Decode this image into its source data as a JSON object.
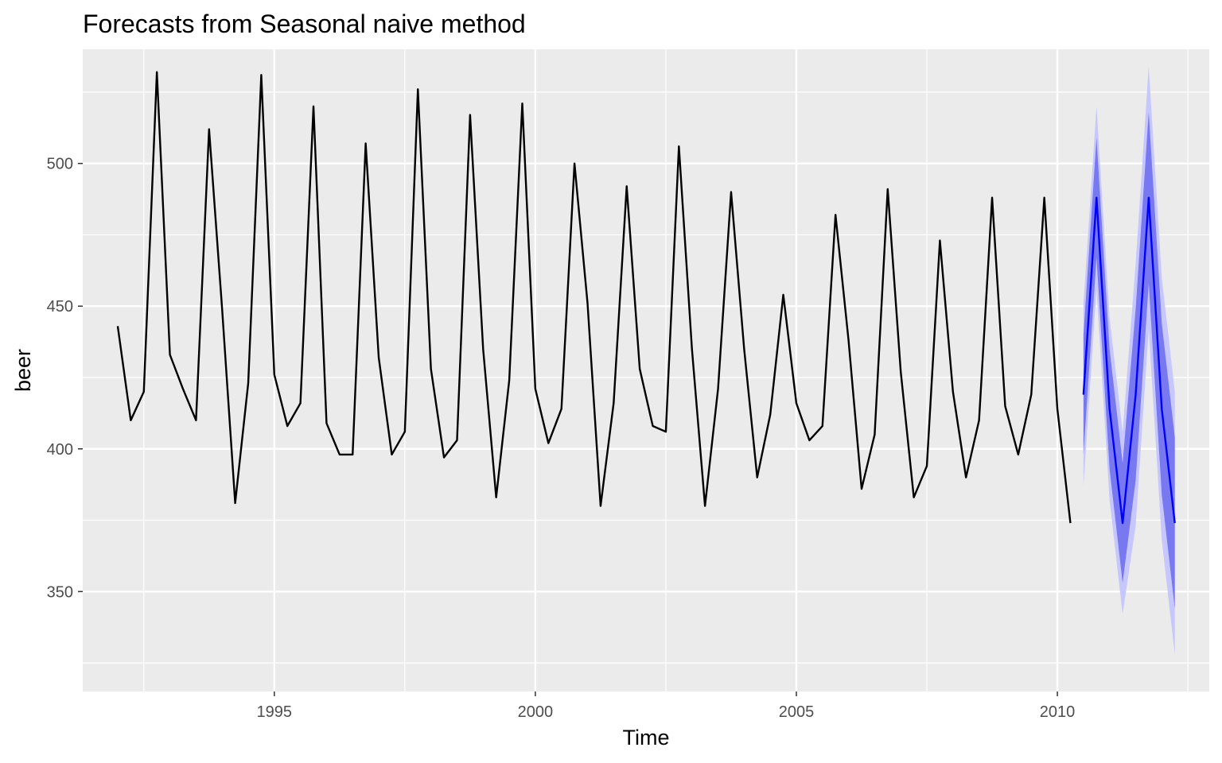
{
  "chart_data": {
    "type": "line",
    "title": "Forecasts from Seasonal naive method",
    "xlabel": "Time",
    "ylabel": "beer",
    "xlim": [
      1991.33,
      2012.91
    ],
    "ylim": [
      315,
      540
    ],
    "x_ticks": [
      1995,
      2000,
      2005,
      2010
    ],
    "x_tick_labels": [
      "1995",
      "2000",
      "2005",
      "2010"
    ],
    "y_ticks": [
      350,
      400,
      450,
      500
    ],
    "y_tick_labels": [
      "350",
      "400",
      "450",
      "500"
    ],
    "grid": true,
    "legend": "none",
    "colors": {
      "panel": "#EBEBEB",
      "grid_major": "#FFFFFF",
      "history_line": "#000000",
      "forecast_line": "#0000FF",
      "band_95": "#C7C7FF",
      "band_80": "#7878F0"
    },
    "history": {
      "start_year": 1992,
      "start_quarter": 1,
      "frequency": 4,
      "values": [
        443,
        410,
        420,
        532,
        433,
        421,
        410,
        512,
        449,
        381,
        423,
        531,
        426,
        408,
        416,
        520,
        409,
        398,
        398,
        507,
        432,
        398,
        406,
        526,
        428,
        397,
        403,
        517,
        435,
        383,
        424,
        521,
        421,
        402,
        414,
        500,
        451,
        380,
        416,
        492,
        428,
        408,
        406,
        506,
        435,
        380,
        421,
        490,
        435,
        390,
        412,
        454,
        416,
        403,
        408,
        482,
        438,
        386,
        405,
        491,
        427,
        383,
        394,
        473,
        420,
        390,
        410,
        488,
        415,
        398,
        419,
        488,
        414,
        374
      ]
    },
    "forecast": {
      "start_year": 2010,
      "start_quarter": 3,
      "frequency": 4,
      "mean": [
        419,
        488,
        414,
        374,
        419,
        488,
        414,
        374
      ],
      "lo80": [
        398,
        467,
        393,
        353,
        389,
        458,
        384,
        344
      ],
      "hi80": [
        440,
        509,
        435,
        395,
        449,
        518,
        444,
        404
      ],
      "lo95": [
        387,
        456,
        382,
        342,
        373,
        442,
        368,
        328
      ],
      "hi95": [
        451,
        520,
        446,
        406,
        465,
        534,
        460,
        420
      ]
    }
  }
}
